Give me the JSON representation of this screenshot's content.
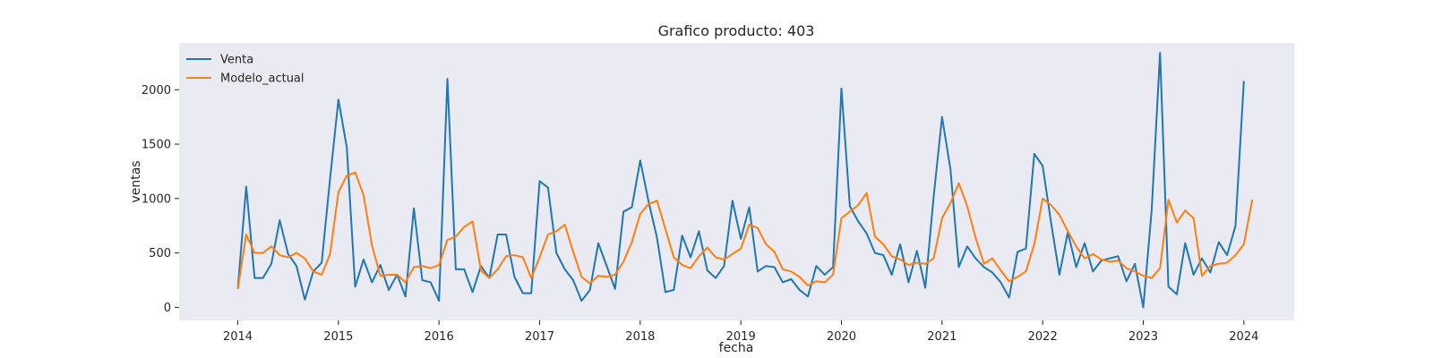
{
  "chart_data": {
    "type": "line",
    "title": "Grafico producto: 403",
    "xlabel": "fecha",
    "ylabel": "ventas",
    "x_start": "2014-01",
    "x_frequency": "monthly",
    "xticks": [
      "2014",
      "2015",
      "2016",
      "2017",
      "2018",
      "2019",
      "2020",
      "2021",
      "2022",
      "2023",
      "2024"
    ],
    "yticks": [
      0,
      500,
      1000,
      1500,
      2000
    ],
    "xlim": [
      "2013-06",
      "2024-07"
    ],
    "ylim": [
      -120,
      2430
    ],
    "grid": false,
    "legend_position": "top-left",
    "background": "#eaeaf2",
    "series": [
      {
        "name": "Venta",
        "color": "#1f77b4",
        "values": [
          170,
          1110,
          270,
          270,
          400,
          800,
          490,
          380,
          70,
          330,
          410,
          1180,
          1910,
          1470,
          190,
          440,
          230,
          390,
          160,
          300,
          100,
          910,
          250,
          230,
          60,
          2100,
          350,
          350,
          140,
          380,
          270,
          670,
          670,
          280,
          130,
          130,
          1160,
          1100,
          500,
          350,
          250,
          60,
          160,
          590,
          380,
          170,
          880,
          920,
          1350,
          970,
          640,
          140,
          160,
          660,
          460,
          700,
          340,
          270,
          380,
          980,
          630,
          920,
          330,
          380,
          370,
          230,
          260,
          160,
          100,
          380,
          300,
          370,
          2010,
          930,
          790,
          680,
          500,
          480,
          300,
          580,
          230,
          520,
          180,
          1020,
          1750,
          1270,
          370,
          560,
          450,
          370,
          320,
          230,
          90,
          510,
          540,
          1410,
          1300,
          780,
          300,
          690,
          370,
          590,
          330,
          430,
          450,
          470,
          240,
          400,
          0,
          890,
          2340,
          190,
          120,
          590,
          300,
          450,
          320,
          600,
          480,
          750,
          2080
        ]
      },
      {
        "name": "Modelo_actual",
        "color": "#ff7f0e",
        "values": [
          170,
          670,
          500,
          500,
          560,
          480,
          460,
          500,
          450,
          330,
          300,
          490,
          1060,
          1210,
          1240,
          1030,
          570,
          290,
          300,
          300,
          230,
          370,
          380,
          360,
          390,
          620,
          650,
          740,
          790,
          340,
          270,
          350,
          470,
          480,
          460,
          270,
          460,
          670,
          700,
          760,
          510,
          280,
          220,
          290,
          280,
          300,
          420,
          600,
          860,
          950,
          980,
          720,
          460,
          390,
          360,
          470,
          550,
          460,
          440,
          490,
          540,
          760,
          730,
          580,
          510,
          350,
          330,
          280,
          200,
          240,
          230,
          300,
          820,
          880,
          940,
          1050,
          650,
          580,
          470,
          440,
          390,
          410,
          400,
          450,
          820,
          960,
          1140,
          930,
          640,
          400,
          450,
          340,
          240,
          280,
          330,
          580,
          1000,
          940,
          850,
          700,
          560,
          450,
          490,
          440,
          420,
          430,
          360,
          330,
          290,
          270,
          360,
          990,
          780,
          890,
          820,
          290,
          380,
          400,
          410,
          480,
          580,
          990
        ]
      }
    ]
  }
}
